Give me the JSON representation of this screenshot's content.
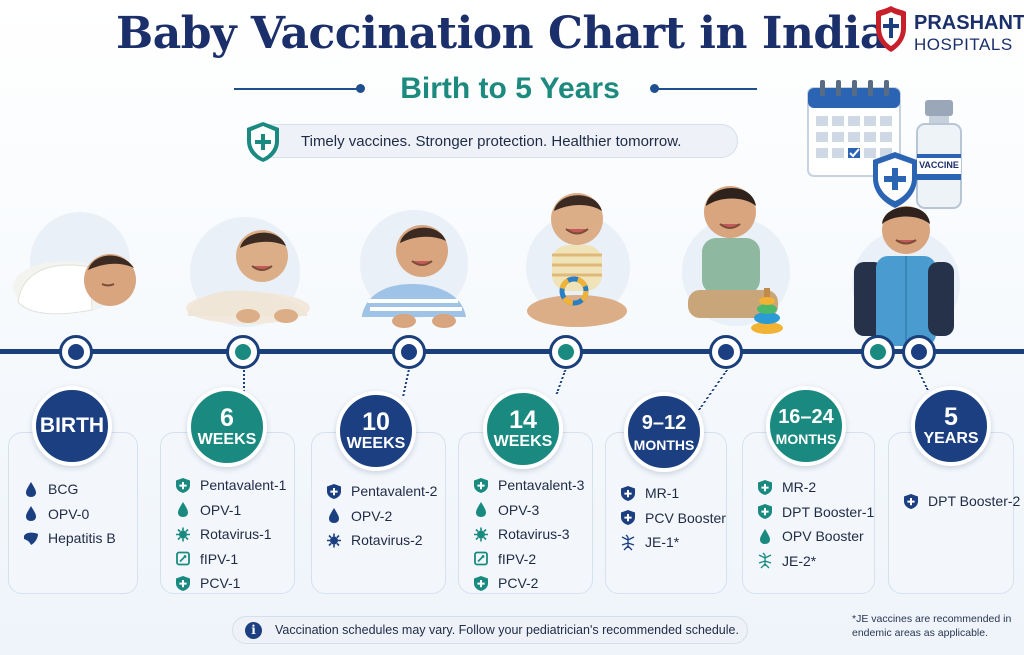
{
  "header": {
    "title": "Baby Vaccination Chart in India",
    "subtitle": "Birth to 5 Years",
    "tagline": "Timely vaccines. Stronger protection. Healthier tomorrow.",
    "logo": {
      "name": "PRASHANTH",
      "sub": "HOSPITALS"
    },
    "vial_label": "VACCINE"
  },
  "colors": {
    "navy": "#1b3f80",
    "teal": "#1a8a80",
    "title": "#1b2f6b"
  },
  "stages": [
    {
      "number": "",
      "unit": "",
      "single": "BIRTH",
      "color": "blue",
      "vaccines": [
        {
          "name": "BCG",
          "icon": "drop-icon"
        },
        {
          "name": "OPV-0",
          "icon": "drop-icon"
        },
        {
          "name": "Hepatitis B",
          "icon": "liver-icon"
        }
      ]
    },
    {
      "number": "6",
      "unit": "WEEKS",
      "single": "",
      "color": "teal",
      "vaccines": [
        {
          "name": "Pentavalent-1",
          "icon": "shield-icon"
        },
        {
          "name": "OPV-1",
          "icon": "drop-icon"
        },
        {
          "name": "Rotavirus-1",
          "icon": "virus-icon"
        },
        {
          "name": "fIPV-1",
          "icon": "syringe-box-icon"
        },
        {
          "name": "PCV-1",
          "icon": "shield-icon"
        }
      ]
    },
    {
      "number": "10",
      "unit": "WEEKS",
      "single": "",
      "color": "blue",
      "vaccines": [
        {
          "name": "Pentavalent-2",
          "icon": "shield-icon"
        },
        {
          "name": "OPV-2",
          "icon": "drop-icon"
        },
        {
          "name": "Rotavirus-2",
          "icon": "virus-icon"
        }
      ]
    },
    {
      "number": "14",
      "unit": "WEEKS",
      "single": "",
      "color": "teal",
      "vaccines": [
        {
          "name": "Pentavalent-3",
          "icon": "shield-icon"
        },
        {
          "name": "OPV-3",
          "icon": "drop-icon"
        },
        {
          "name": "Rotavirus-3",
          "icon": "virus-icon"
        },
        {
          "name": "fIPV-2",
          "icon": "syringe-box-icon"
        },
        {
          "name": "PCV-2",
          "icon": "shield-icon"
        }
      ]
    },
    {
      "number": "9–12",
      "unit": "MONTHS",
      "single": "",
      "color": "blue",
      "vaccines": [
        {
          "name": "MR-1",
          "icon": "shield-icon"
        },
        {
          "name": "PCV Booster",
          "icon": "shield-icon"
        },
        {
          "name": "JE-1*",
          "icon": "mosquito-icon"
        }
      ]
    },
    {
      "number": "16–24",
      "unit": "MONTHS",
      "single": "",
      "color": "teal",
      "vaccines": [
        {
          "name": "MR-2",
          "icon": "shield-icon"
        },
        {
          "name": "DPT Booster-1",
          "icon": "shield-icon"
        },
        {
          "name": "OPV Booster",
          "icon": "drop-icon"
        },
        {
          "name": "JE-2*",
          "icon": "mosquito-icon"
        }
      ]
    },
    {
      "number": "5",
      "unit": "YEARS",
      "single": "",
      "color": "blue",
      "vaccines": [
        {
          "name": "DPT Booster-2",
          "icon": "shield-icon"
        }
      ]
    }
  ],
  "footer": {
    "note": "Vaccination schedules may vary. Follow your pediatrician's recommended schedule.",
    "je_note": "*JE vaccines are recommended in endemic areas as applicable."
  }
}
